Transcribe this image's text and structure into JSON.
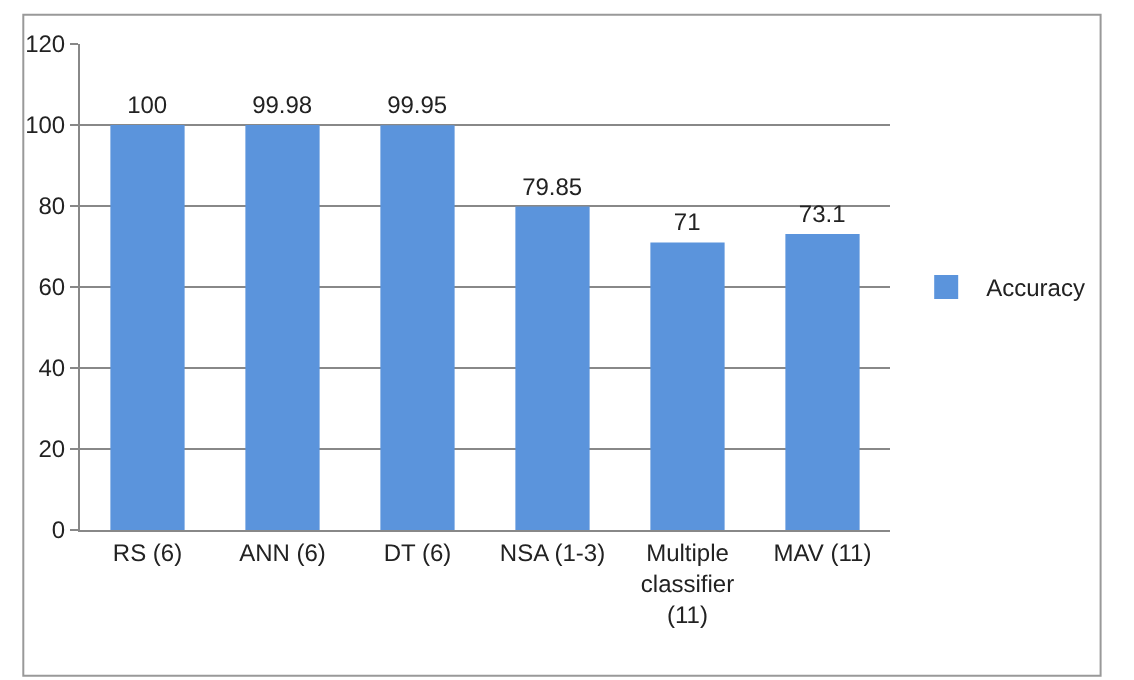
{
  "chart_data": {
    "type": "bar",
    "categories": [
      "RS (6)",
      "ANN (6)",
      "DT (6)",
      "NSA (1-3)",
      "Multiple classifier (11)",
      "MAV (11)"
    ],
    "series": [
      {
        "name": "Accuracy",
        "color": "#5b94dc",
        "values": [
          100,
          99.98,
          99.95,
          79.85,
          71,
          73.1
        ]
      }
    ],
    "ylim": [
      0,
      120
    ],
    "yticks": [
      0,
      20,
      40,
      60,
      80,
      100,
      120
    ],
    "grid": "y",
    "legend": "right",
    "data_labels": true
  }
}
